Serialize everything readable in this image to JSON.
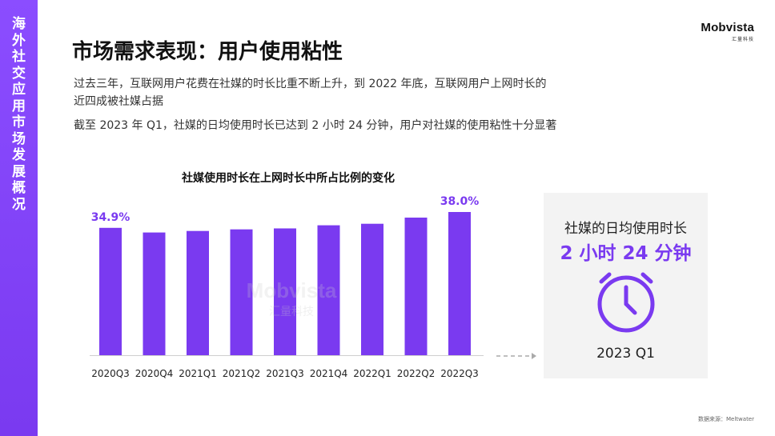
{
  "sidebar": {
    "text": "海外社交应用市场发展概况"
  },
  "logo": {
    "main": "Mobvista",
    "sub": "汇量科技"
  },
  "title": "市场需求表现：用户使用粘性",
  "paragraphs": [
    "过去三年，互联网用户花费在社媒的时长比重不断上升，到 2022 年底，互联网用户上网时长的",
    "近四成被社媒占据",
    "截至 2023 年 Q1，社媒的日均使用时长已达到 2 小时 24 分钟，用户对社媒的使用粘性十分显著"
  ],
  "watermark": {
    "main": "Mobvista",
    "sub": "汇量科技"
  },
  "chart_data": {
    "type": "bar",
    "title": "社媒使用时长在上网时长中所占比例的变化",
    "categories": [
      "2020Q3",
      "2020Q4",
      "2021Q1",
      "2021Q2",
      "2021Q3",
      "2021Q4",
      "2022Q1",
      "2022Q2",
      "2022Q3"
    ],
    "values": [
      34.9,
      34.0,
      34.3,
      34.6,
      34.8,
      35.4,
      35.7,
      36.9,
      38.0
    ],
    "data_labels": [
      {
        "index": 0,
        "text": "34.9%"
      },
      {
        "index": 8,
        "text": "38.0%"
      }
    ],
    "bar_color": "#7a3af0",
    "label_color": "#7a3af0",
    "unit": "%"
  },
  "card": {
    "label": "社媒的日均使用时长",
    "value": "2 小时 24 分钟",
    "date": "2023 Q1",
    "icon": "clock-icon",
    "accent": "#7a3af0"
  },
  "source": "数据来源：Meltwater"
}
